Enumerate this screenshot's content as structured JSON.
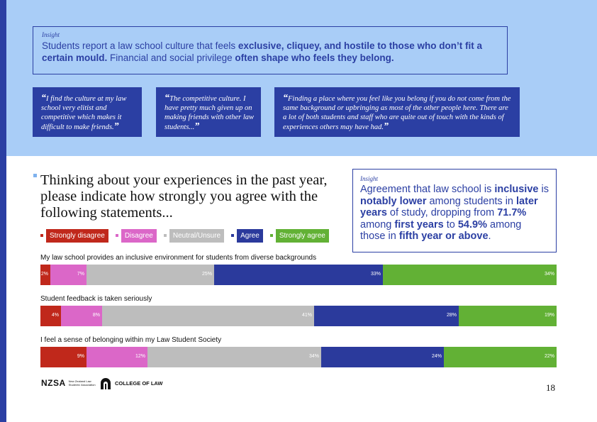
{
  "insight_top": {
    "tag": "Insight",
    "parts": [
      {
        "text": "Students report a law school culture that feels ",
        "bold": false
      },
      {
        "text": "exclusive, cliquey, and hostile to those who don’t fit a certain mould.",
        "bold": true
      },
      {
        "text": " Financial and social privilege ",
        "bold": false
      },
      {
        "text": "often shape who feels they belong.",
        "bold": true
      }
    ]
  },
  "quotes": [
    {
      "open": "“",
      "text": "I find the culture at my law school very elitist and competitive which makes it difficult to make friends.",
      "close": "”"
    },
    {
      "open": "“",
      "text": "The competitive culture. I have pretty much given up on making friends with other law students...",
      "close": "”"
    },
    {
      "open": "“",
      "text": "Finding a place where you feel like you belong if you do not come from the same background or upbringing as most of the other people here. There are a lot of both students and staff who are quite out of touch with the kinds of experiences others may have had.",
      "close": "”"
    }
  ],
  "question": "Thinking about your experiences in the past year, please indicate how strongly you agree with the following statements...",
  "insight_right": {
    "tag": "Insight",
    "parts": [
      {
        "text": "Agreement that law school is ",
        "bold": false
      },
      {
        "text": "inclusive",
        "bold": true
      },
      {
        "text": " is ",
        "bold": false
      },
      {
        "text": "notably lower",
        "bold": true
      },
      {
        "text": " among students in ",
        "bold": false
      },
      {
        "text": "later years",
        "bold": true
      },
      {
        "text": " of study, dropping from ",
        "bold": false
      },
      {
        "text": "71.7%",
        "bold": true
      },
      {
        "text": " among ",
        "bold": false
      },
      {
        "text": "first years",
        "bold": true
      },
      {
        "text": " to ",
        "bold": false
      },
      {
        "text": "54.9%",
        "bold": true
      },
      {
        "text": " among those in ",
        "bold": false
      },
      {
        "text": "fifth year or above",
        "bold": true
      },
      {
        "text": ".",
        "bold": false
      }
    ]
  },
  "colors": {
    "strongly_disagree": "#c0281b",
    "disagree": "#db67c8",
    "neutral": "#bdbdbd",
    "agree": "#2b3a9c",
    "strongly_agree": "#62b135",
    "brand_blue": "#2b3fa3",
    "band_blue": "#a9cdf7"
  },
  "chart_data": {
    "type": "bar",
    "orientation": "horizontal-stacked-100",
    "legend_placement": "top-left",
    "series": [
      {
        "name": "Strongly disagree",
        "color": "#c0281b",
        "values": [
          2,
          4,
          9
        ]
      },
      {
        "name": "Disagree",
        "color": "#db67c8",
        "values": [
          7,
          8,
          12
        ]
      },
      {
        "name": "Neutral/Unsure",
        "color": "#bdbdbd",
        "values": [
          25,
          41,
          34
        ]
      },
      {
        "name": "Agree",
        "color": "#2b3a9c",
        "values": [
          33,
          28,
          24
        ]
      },
      {
        "name": "Strongly agree",
        "color": "#62b135",
        "values": [
          34,
          19,
          22
        ]
      }
    ],
    "categories": [
      "My law school provides an inclusive environment for students from diverse backgrounds",
      "Student feedback is taken seriously",
      "I feel a sense of belonging within my Law Student Society"
    ]
  },
  "footer": {
    "nzsa_mark": "NZSA",
    "nzsa_sub": "New Zealand Law Students’ Association",
    "col_text": "COLLEGE OF LAW",
    "page_number": "18"
  }
}
